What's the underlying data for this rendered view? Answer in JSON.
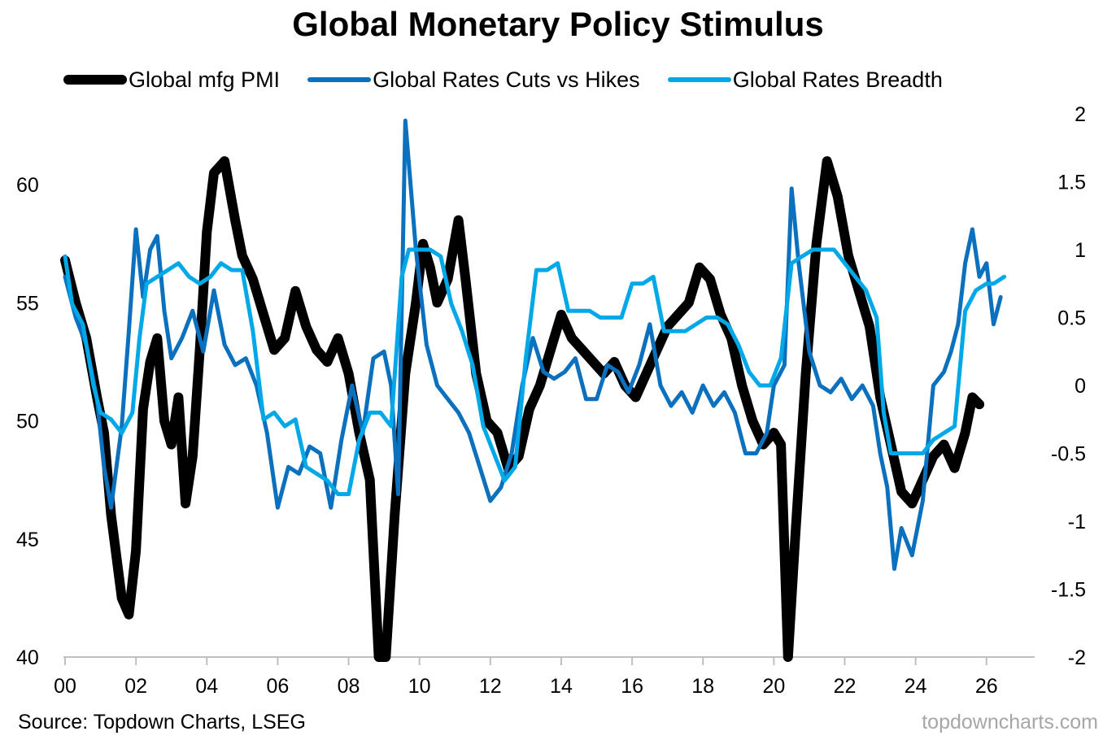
{
  "chart_data": {
    "type": "line",
    "title": "Global Monetary Policy Stimulus",
    "x_tick_labels": [
      "00",
      "02",
      "04",
      "06",
      "08",
      "10",
      "12",
      "14",
      "16",
      "18",
      "20",
      "22",
      "24",
      "26"
    ],
    "x_range": [
      2000,
      2026.9
    ],
    "y_left": {
      "range": [
        40,
        63
      ],
      "ticks": [
        "40",
        "45",
        "50",
        "55",
        "60"
      ]
    },
    "y_right": {
      "range": [
        -2,
        2
      ],
      "ticks": [
        "-2",
        "-1.5",
        "-1",
        "-0.5",
        "0",
        "0.5",
        "1",
        "1.5",
        "2"
      ]
    },
    "series": [
      {
        "name": "Global mfg PMI",
        "axis": "left",
        "color": "#000000",
        "x": [
          2000.0,
          2000.3,
          2000.6,
          2000.9,
          2001.1,
          2001.3,
          2001.6,
          2001.8,
          2002.0,
          2002.2,
          2002.4,
          2002.6,
          2002.8,
          2003.0,
          2003.2,
          2003.4,
          2003.6,
          2003.8,
          2004.0,
          2004.2,
          2004.5,
          2004.8,
          2005.0,
          2005.3,
          2005.6,
          2005.9,
          2006.2,
          2006.5,
          2006.8,
          2007.1,
          2007.4,
          2007.7,
          2008.0,
          2008.3,
          2008.6,
          2008.85,
          2009.05,
          2009.3,
          2009.6,
          2009.9,
          2010.1,
          2010.3,
          2010.5,
          2010.8,
          2011.1,
          2011.3,
          2011.6,
          2011.9,
          2012.2,
          2012.5,
          2012.8,
          2013.1,
          2013.4,
          2013.7,
          2014.0,
          2014.3,
          2014.6,
          2014.9,
          2015.2,
          2015.5,
          2015.8,
          2016.1,
          2016.4,
          2016.7,
          2017.0,
          2017.3,
          2017.6,
          2017.9,
          2018.2,
          2018.5,
          2018.8,
          2019.1,
          2019.4,
          2019.7,
          2020.0,
          2020.2,
          2020.4,
          2020.6,
          2020.9,
          2021.2,
          2021.5,
          2021.8,
          2022.1,
          2022.4,
          2022.7,
          2023.0,
          2023.3,
          2023.6,
          2023.9,
          2024.2,
          2024.5,
          2024.8,
          2025.1,
          2025.4,
          2025.6,
          2025.8
        ],
        "values": [
          56.8,
          55.0,
          53.5,
          51.0,
          49.5,
          46.0,
          42.5,
          41.8,
          44.5,
          50.5,
          52.5,
          53.5,
          50.0,
          49.0,
          51.0,
          46.5,
          48.5,
          53.0,
          58.0,
          60.5,
          61.0,
          58.5,
          57.0,
          56.0,
          54.5,
          53.0,
          53.5,
          55.5,
          54.0,
          53.0,
          52.5,
          53.5,
          52.0,
          49.5,
          47.5,
          40.0,
          40.0,
          46.0,
          52.0,
          55.0,
          57.5,
          56.5,
          55.0,
          56.0,
          58.5,
          56.0,
          52.0,
          50.0,
          49.5,
          48.0,
          48.5,
          50.5,
          51.5,
          53.0,
          54.5,
          53.5,
          53.0,
          52.5,
          52.0,
          52.5,
          51.5,
          51.0,
          52.0,
          53.0,
          54.0,
          54.5,
          55.0,
          56.5,
          56.0,
          54.5,
          53.5,
          51.5,
          50.0,
          49.0,
          49.5,
          49.0,
          40.0,
          45.0,
          52.0,
          57.5,
          61.0,
          59.5,
          57.0,
          55.5,
          54.0,
          51.0,
          49.0,
          47.0,
          46.5,
          47.5,
          48.5,
          49.0,
          48.0,
          49.5,
          51.0,
          50.7
        ]
      },
      {
        "name": "Global Rates Cuts vs Hikes",
        "axis": "right",
        "color": "#0b70bd",
        "x": [
          2000.0,
          2000.3,
          2000.6,
          2000.9,
          2001.1,
          2001.3,
          2001.6,
          2001.8,
          2002.0,
          2002.2,
          2002.4,
          2002.6,
          2002.8,
          2003.0,
          2003.3,
          2003.6,
          2003.9,
          2004.2,
          2004.5,
          2004.8,
          2005.1,
          2005.4,
          2005.7,
          2006.0,
          2006.3,
          2006.6,
          2006.9,
          2007.2,
          2007.5,
          2007.8,
          2008.1,
          2008.4,
          2008.7,
          2009.0,
          2009.2,
          2009.4,
          2009.6,
          2009.9,
          2010.2,
          2010.5,
          2010.8,
          2011.1,
          2011.4,
          2011.7,
          2012.0,
          2012.3,
          2012.6,
          2012.9,
          2013.2,
          2013.5,
          2013.8,
          2014.1,
          2014.4,
          2014.7,
          2015.0,
          2015.3,
          2015.6,
          2015.9,
          2016.2,
          2016.5,
          2016.8,
          2017.1,
          2017.4,
          2017.7,
          2018.0,
          2018.3,
          2018.6,
          2018.9,
          2019.2,
          2019.5,
          2019.8,
          2020.0,
          2020.3,
          2020.5,
          2020.7,
          2021.0,
          2021.3,
          2021.6,
          2021.9,
          2022.2,
          2022.5,
          2022.8,
          2023.0,
          2023.2,
          2023.4,
          2023.6,
          2023.9,
          2024.2,
          2024.5,
          2024.8,
          2025.0,
          2025.2,
          2025.4,
          2025.6,
          2025.8,
          2026.0,
          2026.2,
          2026.4
        ],
        "values": [
          0.8,
          0.5,
          0.3,
          -0.1,
          -0.6,
          -0.9,
          -0.3,
          0.4,
          1.15,
          0.65,
          1.0,
          1.1,
          0.55,
          0.2,
          0.35,
          0.55,
          0.25,
          0.7,
          0.3,
          0.15,
          0.2,
          0.0,
          -0.35,
          -0.9,
          -0.6,
          -0.65,
          -0.45,
          -0.5,
          -0.9,
          -0.4,
          0.0,
          -0.35,
          0.2,
          0.25,
          0.0,
          -0.8,
          1.95,
          1.0,
          0.3,
          0.0,
          -0.1,
          -0.2,
          -0.35,
          -0.6,
          -0.85,
          -0.75,
          -0.5,
          0.0,
          0.35,
          0.1,
          0.05,
          0.1,
          0.2,
          -0.1,
          -0.1,
          0.15,
          0.1,
          -0.05,
          0.15,
          0.45,
          0.0,
          -0.15,
          -0.05,
          -0.2,
          0.0,
          -0.15,
          -0.05,
          -0.2,
          -0.5,
          -0.5,
          -0.35,
          0.0,
          0.15,
          1.45,
          0.9,
          0.25,
          0.0,
          -0.05,
          0.05,
          -0.1,
          0.0,
          -0.15,
          -0.5,
          -0.75,
          -1.35,
          -1.05,
          -1.25,
          -0.85,
          0.0,
          0.1,
          0.25,
          0.45,
          0.9,
          1.15,
          0.8,
          0.9,
          0.45,
          0.65
        ]
      },
      {
        "name": "Global Rates Breadth",
        "axis": "right",
        "color": "#00a8e8",
        "x": [
          2000.0,
          2000.2,
          2000.5,
          2000.8,
          2001.0,
          2001.3,
          2001.6,
          2001.9,
          2002.1,
          2002.3,
          2002.6,
          2002.9,
          2003.2,
          2003.5,
          2003.8,
          2004.1,
          2004.4,
          2004.7,
          2005.0,
          2005.3,
          2005.6,
          2005.9,
          2006.2,
          2006.5,
          2006.8,
          2007.1,
          2007.4,
          2007.7,
          2008.0,
          2008.3,
          2008.6,
          2008.9,
          2009.2,
          2009.5,
          2009.7,
          2010.0,
          2010.3,
          2010.6,
          2010.9,
          2011.2,
          2011.5,
          2011.8,
          2012.1,
          2012.4,
          2012.7,
          2013.0,
          2013.3,
          2013.6,
          2013.9,
          2014.2,
          2014.5,
          2014.8,
          2015.1,
          2015.4,
          2015.7,
          2016.0,
          2016.3,
          2016.6,
          2016.9,
          2017.2,
          2017.5,
          2017.8,
          2018.1,
          2018.4,
          2018.7,
          2019.0,
          2019.3,
          2019.6,
          2019.9,
          2020.2,
          2020.5,
          2020.8,
          2021.1,
          2021.4,
          2021.7,
          2022.0,
          2022.3,
          2022.6,
          2022.9,
          2023.1,
          2023.3,
          2023.6,
          2023.9,
          2024.2,
          2024.5,
          2024.8,
          2025.1,
          2025.4,
          2025.7,
          2026.0,
          2026.2,
          2026.5
        ],
        "values": [
          0.95,
          0.6,
          0.45,
          0.0,
          -0.2,
          -0.25,
          -0.35,
          -0.2,
          0.35,
          0.75,
          0.8,
          0.85,
          0.9,
          0.8,
          0.75,
          0.8,
          0.9,
          0.85,
          0.85,
          0.4,
          -0.25,
          -0.2,
          -0.3,
          -0.25,
          -0.6,
          -0.65,
          -0.7,
          -0.8,
          -0.8,
          -0.4,
          -0.2,
          -0.2,
          -0.3,
          0.8,
          1.0,
          1.0,
          1.0,
          0.95,
          0.6,
          0.4,
          0.15,
          -0.3,
          -0.5,
          -0.7,
          -0.6,
          0.2,
          0.85,
          0.85,
          0.9,
          0.55,
          0.55,
          0.55,
          0.5,
          0.5,
          0.5,
          0.75,
          0.75,
          0.8,
          0.4,
          0.4,
          0.4,
          0.45,
          0.5,
          0.5,
          0.45,
          0.3,
          0.1,
          0.0,
          0.0,
          0.2,
          0.9,
          0.95,
          1.0,
          1.0,
          1.0,
          0.9,
          0.8,
          0.7,
          0.5,
          -0.2,
          -0.5,
          -0.5,
          -0.5,
          -0.5,
          -0.4,
          -0.35,
          -0.3,
          0.55,
          0.7,
          0.75,
          0.75,
          0.8
        ]
      }
    ]
  },
  "footer": {
    "source": "Source: Topdown Charts, LSEG",
    "watermark": "topdowncharts.com"
  }
}
